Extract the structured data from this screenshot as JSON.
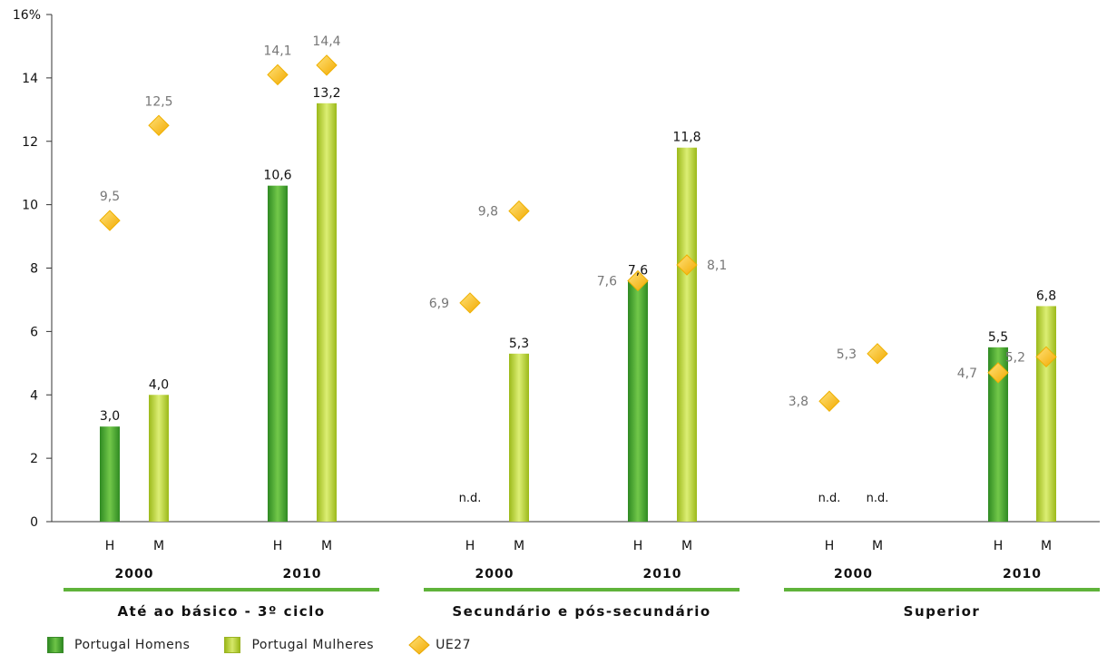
{
  "chart_data": {
    "type": "bar",
    "y_unit_label": "16%",
    "ylim": [
      0,
      16
    ],
    "y_ticks": [
      "0",
      "2",
      "4",
      "6",
      "8",
      "10",
      "12",
      "14"
    ],
    "colors": {
      "homens": "#4caf32",
      "mulheres": "#b9d33a",
      "ue27": "#f5b800"
    },
    "groups": [
      {
        "label": "Até ao básico - 3º ciclo",
        "years": [
          {
            "label": "2000",
            "slots": [
              {
                "sex": "H",
                "pt": 3.0,
                "pt_label": "3,0",
                "ue": 9.5,
                "ue_label": "9,5"
              },
              {
                "sex": "M",
                "pt": 4.0,
                "pt_label": "4,0",
                "ue": 12.5,
                "ue_label": "12,5"
              }
            ]
          },
          {
            "label": "2010",
            "slots": [
              {
                "sex": "H",
                "pt": 10.6,
                "pt_label": "10,6",
                "ue": 14.1,
                "ue_label": "14,1"
              },
              {
                "sex": "M",
                "pt": 13.2,
                "pt_label": "13,2",
                "ue": 14.4,
                "ue_label": "14,4"
              }
            ]
          }
        ]
      },
      {
        "label": "Secundário e pós-secundário",
        "years": [
          {
            "label": "2000",
            "slots": [
              {
                "sex": "H",
                "pt": null,
                "pt_label": "n.d.",
                "ue": 6.9,
                "ue_label": "6,9"
              },
              {
                "sex": "M",
                "pt": 5.3,
                "pt_label": "5,3",
                "ue": 9.8,
                "ue_label": "9,8"
              }
            ]
          },
          {
            "label": "2010",
            "slots": [
              {
                "sex": "H",
                "pt": 7.6,
                "pt_label": "7,6",
                "ue": 7.6,
                "ue_label": "7,6"
              },
              {
                "sex": "M",
                "pt": 11.8,
                "pt_label": "11,8",
                "ue": 8.1,
                "ue_label": "8,1"
              }
            ]
          }
        ]
      },
      {
        "label": "Superior",
        "years": [
          {
            "label": "2000",
            "slots": [
              {
                "sex": "H",
                "pt": null,
                "pt_label": "n.d.",
                "ue": 3.8,
                "ue_label": "3,8"
              },
              {
                "sex": "M",
                "pt": null,
                "pt_label": "n.d.",
                "ue": 5.3,
                "ue_label": "5,3"
              }
            ]
          },
          {
            "label": "2010",
            "slots": [
              {
                "sex": "H",
                "pt": 5.5,
                "pt_label": "5,5",
                "ue": 4.7,
                "ue_label": "4,7"
              },
              {
                "sex": "M",
                "pt": 6.8,
                "pt_label": "6,8",
                "ue": 5.2,
                "ue_label": "5,2"
              }
            ]
          }
        ]
      }
    ],
    "legend": {
      "homens": "Portugal Homens",
      "mulheres": "Portugal Mulheres",
      "ue27": "UE27"
    }
  }
}
